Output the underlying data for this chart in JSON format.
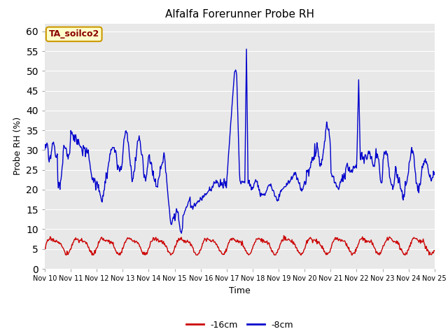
{
  "title": "Alfalfa Forerunner Probe RH",
  "xlabel": "Time",
  "ylabel": "Probe RH (%)",
  "ylim": [
    0,
    62
  ],
  "yticks": [
    0,
    5,
    10,
    15,
    20,
    25,
    30,
    35,
    40,
    45,
    50,
    55,
    60
  ],
  "bg_color": "#e8e8e8",
  "fig_bg_color": "#ffffff",
  "line_color_8cm": "#0000cc",
  "line_color_16cm": "#cc0000",
  "annotation_box_bg": "#ffffcc",
  "annotation_box_edge": "#cc9900",
  "annotation_text": "TA_soilco2",
  "annotation_text_color": "#8b0000",
  "legend_label_8cm": "-8cm",
  "legend_label_16cm": "-16cm",
  "xtick_labels": [
    "Nov 10",
    "Nov 11",
    "Nov 12",
    "Nov 13",
    "Nov 14",
    "Nov 15",
    "Nov 16",
    "Nov 17",
    "Nov 18",
    "Nov 19",
    "Nov 20",
    "Nov 21",
    "Nov 22",
    "Nov 23",
    "Nov 24",
    "Nov 25"
  ]
}
